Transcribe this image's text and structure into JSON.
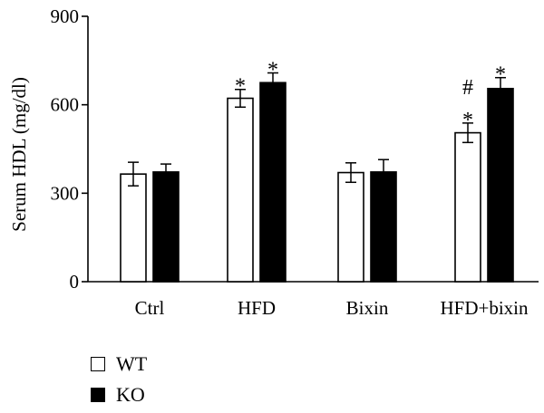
{
  "chart_data": {
    "type": "bar",
    "ylabel": "Serum HDL (mg/dl)",
    "ylim": [
      0,
      900
    ],
    "yticks": [
      0,
      300,
      600,
      900
    ],
    "categories": [
      "Ctrl",
      "HFD",
      "Bixin",
      "HFD+bixin"
    ],
    "series": [
      {
        "name": "WT",
        "color": "#ffffff",
        "values": [
          365,
          622,
          370,
          505
        ],
        "errors": [
          40,
          30,
          33,
          33
        ]
      },
      {
        "name": "KO",
        "color": "#000000",
        "values": [
          372,
          675,
          372,
          655
        ],
        "errors": [
          27,
          33,
          42,
          37
        ]
      }
    ],
    "annotations": [
      {
        "category": "HFD",
        "series": "WT",
        "marks": [
          "*"
        ]
      },
      {
        "category": "HFD",
        "series": "KO",
        "marks": [
          "*"
        ]
      },
      {
        "category": "HFD+bixin",
        "series": "WT",
        "marks": [
          "#",
          "*"
        ]
      },
      {
        "category": "HFD+bixin",
        "series": "KO",
        "marks": [
          "*"
        ]
      }
    ],
    "grid": false,
    "legend_position": "bottom-left"
  },
  "legend": {
    "wt_label": "WT",
    "ko_label": "KO"
  }
}
